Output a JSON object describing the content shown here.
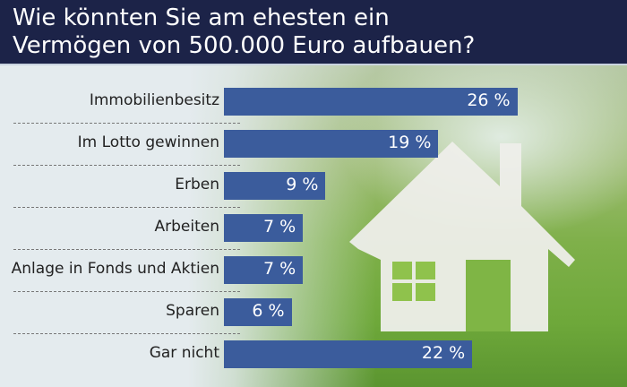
{
  "chart_data": {
    "type": "bar",
    "orientation": "horizontal",
    "title": "Wie könnten Sie am ehesten ein Vermögen von 500.000 Euro aufbauen?",
    "title_lines": [
      "Wie könnten Sie am ehesten ein",
      "Vermögen von 500.000 Euro aufbauen?"
    ],
    "categories": [
      "Immobilienbesitz",
      "Im Lotto gewinnen",
      "Erben",
      "Arbeiten",
      "Anlage in Fonds und Aktien",
      "Sparen",
      "Gar nicht"
    ],
    "values": [
      26,
      19,
      9,
      7,
      7,
      6,
      22
    ],
    "value_labels": [
      "26 %",
      "19 %",
      "9 %",
      "7 %",
      "7 %",
      "6 %",
      "22 %"
    ],
    "unit": "%",
    "bar_color": "#3b5c9c",
    "title_background": "#1c2348",
    "grid": false,
    "legend": "none"
  }
}
